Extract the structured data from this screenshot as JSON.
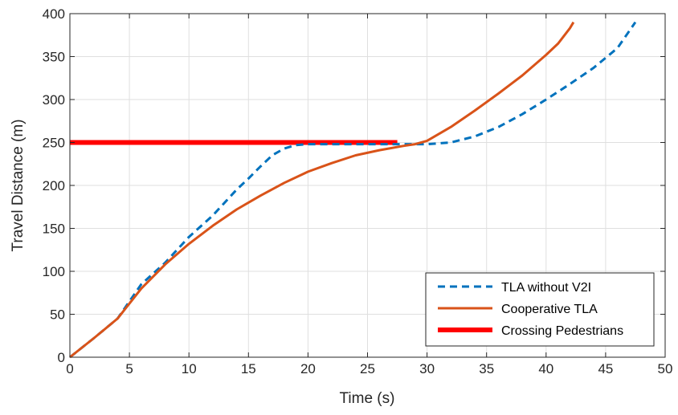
{
  "chart_data": {
    "type": "line",
    "title": "",
    "xlabel": "Time (s)",
    "ylabel": "Travel Distance (m)",
    "xlim": [
      0,
      50
    ],
    "ylim": [
      0,
      400
    ],
    "x_ticks": [
      0,
      5,
      10,
      15,
      20,
      25,
      30,
      35,
      40,
      45,
      50
    ],
    "y_ticks": [
      0,
      50,
      100,
      150,
      200,
      250,
      300,
      350,
      400
    ],
    "grid": true,
    "legend_position": "bottom-right",
    "series": [
      {
        "name": "TLA without V2I",
        "color": "#0072BD",
        "style": "dashed",
        "points": [
          [
            0,
            0
          ],
          [
            2,
            22
          ],
          [
            4,
            45
          ],
          [
            6,
            85
          ],
          [
            8,
            110
          ],
          [
            10,
            140
          ],
          [
            12,
            165
          ],
          [
            14,
            195
          ],
          [
            15,
            208
          ],
          [
            16,
            222
          ],
          [
            17,
            235
          ],
          [
            18,
            243
          ],
          [
            19,
            247
          ],
          [
            20,
            248
          ],
          [
            25,
            248
          ],
          [
            28,
            248
          ],
          [
            30,
            248
          ],
          [
            32,
            250
          ],
          [
            34,
            257
          ],
          [
            36,
            268
          ],
          [
            38,
            283
          ],
          [
            40,
            300
          ],
          [
            42,
            318
          ],
          [
            44,
            337
          ],
          [
            46,
            360
          ],
          [
            47.5,
            390
          ]
        ]
      },
      {
        "name": "Cooperative TLA",
        "color": "#D95319",
        "style": "solid",
        "points": [
          [
            0,
            0
          ],
          [
            2,
            22
          ],
          [
            4,
            45
          ],
          [
            6,
            80
          ],
          [
            8,
            108
          ],
          [
            10,
            132
          ],
          [
            12,
            153
          ],
          [
            14,
            172
          ],
          [
            16,
            188
          ],
          [
            18,
            203
          ],
          [
            20,
            216
          ],
          [
            22,
            226
          ],
          [
            24,
            235
          ],
          [
            26,
            241
          ],
          [
            28,
            246
          ],
          [
            29,
            248
          ],
          [
            30,
            252
          ],
          [
            32,
            268
          ],
          [
            34,
            287
          ],
          [
            36,
            307
          ],
          [
            38,
            328
          ],
          [
            40,
            352
          ],
          [
            41,
            365
          ],
          [
            42,
            383
          ],
          [
            42.3,
            390
          ]
        ]
      },
      {
        "name": "Crossing Pedestrians",
        "color": "#FF0000",
        "style": "thick",
        "points": [
          [
            0,
            250
          ],
          [
            27.5,
            250
          ]
        ]
      }
    ]
  }
}
